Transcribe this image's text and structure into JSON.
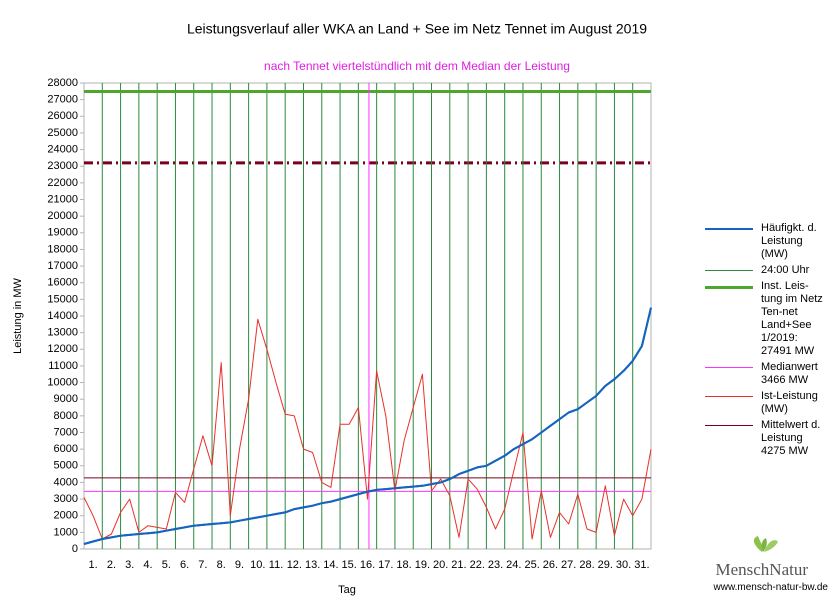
{
  "chart_data": {
    "type": "line",
    "title": "Leistungsverlauf aller WKA an Land + See im Netz Tennet im August 2019",
    "subtitle": "nach Tennet viertelstündlich mit dem Median der Leistung",
    "y_label": "Leistung in MW",
    "x_label": "Tag",
    "xlim": [
      0,
      31
    ],
    "day_labels": [
      "1.",
      "2.",
      "3.",
      "4.",
      "5.",
      "6.",
      "7.",
      "8.",
      "9.",
      "10.",
      "11.",
      "12.",
      "13.",
      "14.",
      "15.",
      "16.",
      "17.",
      "18.",
      "19.",
      "20.",
      "21.",
      "22.",
      "23.",
      "24.",
      "25.",
      "26.",
      "27.",
      "28.",
      "29.",
      "30.",
      "31."
    ],
    "ylim": [
      0,
      28000
    ],
    "yticks": [
      0,
      1000,
      2000,
      3000,
      4000,
      5000,
      6000,
      7000,
      8000,
      9000,
      10000,
      11000,
      12000,
      13000,
      14000,
      15000,
      16000,
      17000,
      18000,
      19000,
      20000,
      21000,
      22000,
      23000,
      24000,
      25000,
      26000,
      27000,
      28000
    ],
    "x": [
      0,
      0.5,
      1,
      1.5,
      2,
      2.5,
      3,
      3.5,
      4,
      4.5,
      5,
      5.5,
      6,
      6.5,
      7,
      7.5,
      8,
      8.5,
      9,
      9.5,
      10,
      10.5,
      11,
      11.5,
      12,
      12.5,
      13,
      13.5,
      14,
      14.5,
      15,
      15.5,
      16,
      16.5,
      17,
      17.5,
      18,
      18.5,
      19,
      19.5,
      20,
      20.5,
      21,
      21.5,
      22,
      22.5,
      23,
      23.5,
      24,
      24.5,
      25,
      25.5,
      26,
      26.5,
      27,
      27.5,
      28,
      28.5,
      29,
      29.5,
      30,
      30.5,
      31
    ],
    "series": [
      {
        "name": "Häufigkt. d. Leistung (MW)",
        "kind": "curve",
        "color": "#1565c0",
        "width": 2,
        "values": [
          300,
          450,
          600,
          700,
          800,
          850,
          900,
          950,
          1000,
          1100,
          1200,
          1300,
          1400,
          1450,
          1500,
          1550,
          1600,
          1700,
          1800,
          1900,
          2000,
          2100,
          2200,
          2400,
          2500,
          2600,
          2750,
          2850,
          3000,
          3150,
          3300,
          3450,
          3550,
          3600,
          3650,
          3700,
          3750,
          3800,
          3900,
          4000,
          4200,
          4500,
          4700,
          4900,
          5000,
          5300,
          5600,
          6000,
          6300,
          6600,
          7000,
          7400,
          7800,
          8200,
          8400,
          8800,
          9200,
          9800,
          10200,
          10700,
          11300,
          12200,
          14500
        ]
      },
      {
        "name": "24:00 Uhr",
        "kind": "day-grid",
        "color": "#2a8a3e",
        "width": 1
      },
      {
        "name": "Inst. Leis-tung im Netz Ten-net Land+See 1/2019: 27491 MW",
        "kind": "level",
        "value": 27491,
        "color": "#4ea72c",
        "width": 3
      },
      {
        "name": "Medianwert 3466 MW",
        "kind": "level",
        "value": 3466,
        "color": "#ff33ff",
        "width": 1,
        "crossing": true
      },
      {
        "name": "Ist-Leistung (MW)",
        "kind": "curve",
        "color": "#e8312a",
        "width": 1,
        "values": [
          3100,
          2000,
          600,
          900,
          2200,
          3000,
          1000,
          1400,
          1300,
          1200,
          3400,
          2800,
          4800,
          6800,
          5000,
          11200,
          2000,
          6000,
          9000,
          13800,
          12000,
          10000,
          8100,
          8000,
          6000,
          5800,
          4000,
          3700,
          7500,
          7500,
          8500,
          3000,
          10700,
          8000,
          3500,
          6500,
          8500,
          10500,
          3500,
          4200,
          3200,
          700,
          4200,
          3600,
          2500,
          1200,
          2400,
          4700,
          7000,
          600,
          3500,
          700,
          2200,
          1500,
          3300,
          1200,
          1000,
          3800,
          800,
          3000,
          2000,
          3000,
          6000
        ]
      },
      {
        "name": "Mittelwert d. Leistung 4275 MW",
        "kind": "level",
        "value": 4275,
        "color": "#7b0020",
        "width": 1
      }
    ],
    "reference_lines": [
      {
        "value": 23200,
        "color": "#7b0020",
        "style": "dash-dot"
      }
    ]
  },
  "branding": {
    "name": "MenschNatur",
    "url": "www.mensch-natur-bw.de"
  }
}
